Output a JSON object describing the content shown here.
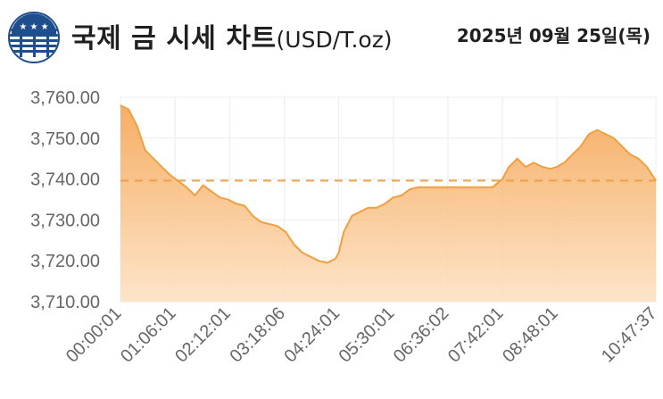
{
  "header": {
    "title_main": "국제 금 시세 차트",
    "title_unit": "(USD/T.oz)",
    "date": "2025년 09월 25일(목)"
  },
  "colors": {
    "line": "#f0a040",
    "fill_top": "#f5a04a",
    "fill_bottom": "#fde0c0",
    "reference": "#f0a040",
    "grid": "#ececec",
    "text": "#1f1f1f"
  },
  "chart_data": {
    "type": "area",
    "title": "국제 금 시세 차트(USD/T.oz)",
    "xlabel": "",
    "ylabel": "",
    "ylim": [
      3710,
      3760
    ],
    "y_ticks": [
      "3,760.00",
      "3,750.00",
      "3,740.00",
      "3,730.00",
      "3,720.00",
      "3,710.00"
    ],
    "y_tick_values": [
      3760,
      3750,
      3740,
      3730,
      3720,
      3710
    ],
    "x_ticks": [
      "00:00:01",
      "01:06:01",
      "02:12:01",
      "03:18:06",
      "04:24:01",
      "05:30:01",
      "06:36:02",
      "07:42:01",
      "08:48:01",
      "10:47:37"
    ],
    "x_tick_seconds": [
      1,
      3961,
      7921,
      11886,
      15841,
      19801,
      23762,
      27721,
      31681,
      38857
    ],
    "reference_line": 3739.6,
    "grid": true,
    "series": [
      {
        "x_seconds": [
          1,
          600,
          1200,
          1800,
          2400,
          3000,
          3600,
          4200,
          4800,
          5400,
          6000,
          6600,
          7200,
          7800,
          8400,
          9000,
          9600,
          10200,
          10800,
          11400,
          12000,
          12600,
          13200,
          13800,
          14400,
          15000,
          15600,
          15841,
          16200,
          16800,
          17400,
          18000,
          18600,
          19200,
          19801,
          20400,
          21000,
          21600,
          22200,
          22800,
          23400,
          23762,
          24600,
          25800,
          27000,
          27721,
          28200,
          28800,
          29400,
          30000,
          30600,
          31200,
          31681,
          32200,
          32800,
          33400,
          34000,
          34600,
          35200,
          35800,
          36400,
          37000,
          37600,
          38200,
          38857
        ],
        "values": [
          3758,
          3757,
          3753,
          3747,
          3745,
          3743,
          3741,
          3739.5,
          3738,
          3736,
          3738.5,
          3737,
          3735.5,
          3735,
          3734,
          3733.5,
          3731,
          3729.5,
          3729,
          3728.5,
          3727,
          3724,
          3722,
          3721,
          3720,
          3719.5,
          3720.5,
          3722,
          3727,
          3731,
          3732,
          3733,
          3733,
          3734,
          3735.5,
          3736,
          3737.5,
          3738,
          3738,
          3738,
          3738,
          3738,
          3738,
          3738,
          3738,
          3740,
          3743,
          3745,
          3743,
          3744,
          3743,
          3742.5,
          3743,
          3744,
          3746,
          3748,
          3751,
          3752,
          3751,
          3750,
          3748,
          3746,
          3745,
          3743,
          3739.6
        ]
      }
    ]
  }
}
